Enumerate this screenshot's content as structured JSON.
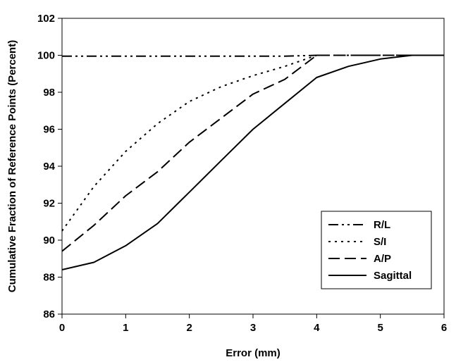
{
  "chart_data": {
    "type": "line",
    "title": "",
    "xlabel": "Error (mm)",
    "ylabel": "Cumulative Fraction of Reference Points (Percent)",
    "xlim": [
      0,
      6
    ],
    "ylim": [
      86,
      102
    ],
    "xticks": [
      0,
      1,
      2,
      3,
      4,
      5,
      6
    ],
    "yticks": [
      86,
      88,
      90,
      92,
      94,
      96,
      98,
      100,
      102
    ],
    "grid": false,
    "legend_position": "bottom-right",
    "series": [
      {
        "name": "R/L",
        "dash": "dash-dot-dot",
        "x": [
          0,
          0.5,
          1,
          1.5,
          2,
          2.5,
          3,
          3.5,
          4,
          4.5,
          5,
          5.5,
          6
        ],
        "y": [
          99.95,
          99.95,
          99.95,
          99.95,
          99.95,
          99.95,
          99.95,
          99.95,
          100,
          100,
          100,
          100,
          100
        ]
      },
      {
        "name": "S/I",
        "dash": "dotted",
        "x": [
          0,
          0.5,
          1,
          1.5,
          2,
          2.5,
          3,
          3.5,
          4,
          4.5,
          5,
          5.5,
          6
        ],
        "y": [
          90.5,
          92.9,
          94.8,
          96.3,
          97.5,
          98.3,
          98.9,
          99.4,
          100,
          100,
          100,
          100,
          100
        ]
      },
      {
        "name": "A/P",
        "dash": "dashed",
        "x": [
          0,
          0.5,
          1,
          1.5,
          2,
          2.5,
          3,
          3.5,
          4,
          4.5,
          5,
          5.5,
          6
        ],
        "y": [
          89.4,
          90.8,
          92.4,
          93.7,
          95.3,
          96.6,
          97.9,
          98.7,
          100,
          100,
          100,
          100,
          100
        ]
      },
      {
        "name": "Sagittal",
        "dash": "solid",
        "x": [
          0,
          0.5,
          1,
          1.5,
          2,
          2.5,
          3,
          3.5,
          4,
          4.5,
          5,
          5.5,
          6
        ],
        "y": [
          88.4,
          88.8,
          89.7,
          90.9,
          92.6,
          94.3,
          96.0,
          97.4,
          98.8,
          99.4,
          99.8,
          100,
          100
        ]
      }
    ]
  }
}
